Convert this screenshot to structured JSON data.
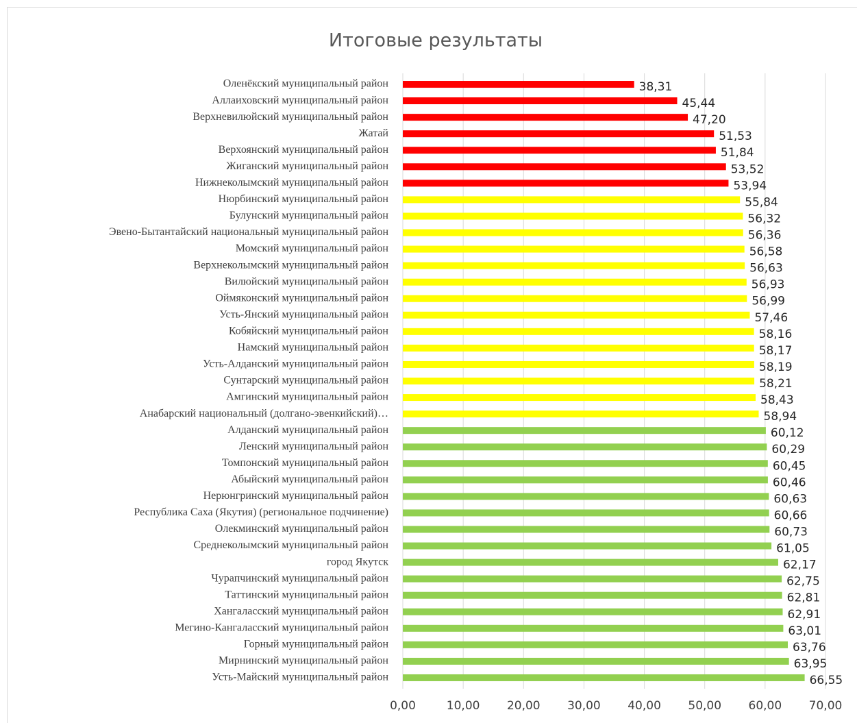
{
  "chart_data": {
    "type": "hbar",
    "title": "Итоговые результаты",
    "categories": [
      "Оленёкский муниципальный район",
      "Аллаиховский муниципальный район",
      "Верхневилюйский муниципальный район",
      "Жатай",
      "Верхоянский муниципальный район",
      "Жиганский муниципальный район",
      "Нижнеколымский муниципальный район",
      "Нюрбинский муниципальный район",
      "Булунский муниципальный район",
      "Эвено-Бытантайский национальный муниципальный район",
      "Момский муниципальный район",
      "Верхнеколымский муниципальный район",
      "Вилюйский муниципальный район",
      "Оймяконский муниципальный район",
      "Усть-Янский муниципальный район",
      "Кобяйский муниципальный район",
      "Намский муниципальный район",
      "Усть-Алданский муниципальный район",
      "Сунтарский муниципальный район",
      "Амгинский муниципальный район",
      "Анабарский национальный (долгано-эвенкийский)…",
      "Алданский муниципальный район",
      "Ленский муниципальный район",
      "Томпонский муниципальный район",
      "Абыйский муниципальный район",
      "Нерюнгринский муниципальный район",
      "Республика Саха (Якутия) (региональное подчинение)",
      "Олекминский муниципальный район",
      "Среднеколымский муниципальный район",
      "город Якутск",
      "Чурапчинский муниципальный район",
      "Таттинский муниципальный район",
      "Хангаласский муниципальный район",
      "Мегино-Кангаласский муниципальный район",
      "Горный муниципальный район",
      "Мирнинский муниципальный район",
      "Усть-Майский муниципальный район"
    ],
    "values": [
      38.31,
      45.44,
      47.2,
      51.53,
      51.84,
      53.52,
      53.94,
      55.84,
      56.32,
      56.36,
      56.58,
      56.63,
      56.93,
      56.99,
      57.46,
      58.16,
      58.17,
      58.19,
      58.21,
      58.43,
      58.94,
      60.12,
      60.29,
      60.45,
      60.46,
      60.63,
      60.66,
      60.73,
      61.05,
      62.17,
      62.75,
      62.81,
      62.91,
      63.01,
      63.76,
      63.95,
      66.55
    ],
    "value_labels": [
      "38,31",
      "45,44",
      "47,20",
      "51,53",
      "51,84",
      "53,52",
      "53,94",
      "55,84",
      "56,32",
      "56,36",
      "56,58",
      "56,63",
      "56,93",
      "56,99",
      "57,46",
      "58,16",
      "58,17",
      "58,19",
      "58,21",
      "58,43",
      "58,94",
      "60,12",
      "60,29",
      "60,45",
      "60,46",
      "60,63",
      "60,66",
      "60,73",
      "61,05",
      "62,17",
      "62,75",
      "62,81",
      "62,91",
      "63,01",
      "63,76",
      "63,95",
      "66,55"
    ],
    "colors": [
      "#ff0000",
      "#ff0000",
      "#ff0000",
      "#ff0000",
      "#ff0000",
      "#ff0000",
      "#ff0000",
      "#ffff00",
      "#ffff00",
      "#ffff00",
      "#ffff00",
      "#ffff00",
      "#ffff00",
      "#ffff00",
      "#ffff00",
      "#ffff00",
      "#ffff00",
      "#ffff00",
      "#ffff00",
      "#ffff00",
      "#ffff00",
      "#92d050",
      "#92d050",
      "#92d050",
      "#92d050",
      "#92d050",
      "#92d050",
      "#92d050",
      "#92d050",
      "#92d050",
      "#92d050",
      "#92d050",
      "#92d050",
      "#92d050",
      "#92d050",
      "#92d050",
      "#92d050"
    ],
    "xlim": [
      0,
      70
    ],
    "xticks": [
      {
        "value": 0,
        "label": "0,00"
      },
      {
        "value": 10,
        "label": "10,00"
      },
      {
        "value": 20,
        "label": "20,00"
      },
      {
        "value": 30,
        "label": "30,00"
      },
      {
        "value": 40,
        "label": "40,00"
      },
      {
        "value": 50,
        "label": "50,00"
      },
      {
        "value": 60,
        "label": "60,00"
      },
      {
        "value": 70,
        "label": "70,00"
      }
    ],
    "grid": true
  }
}
